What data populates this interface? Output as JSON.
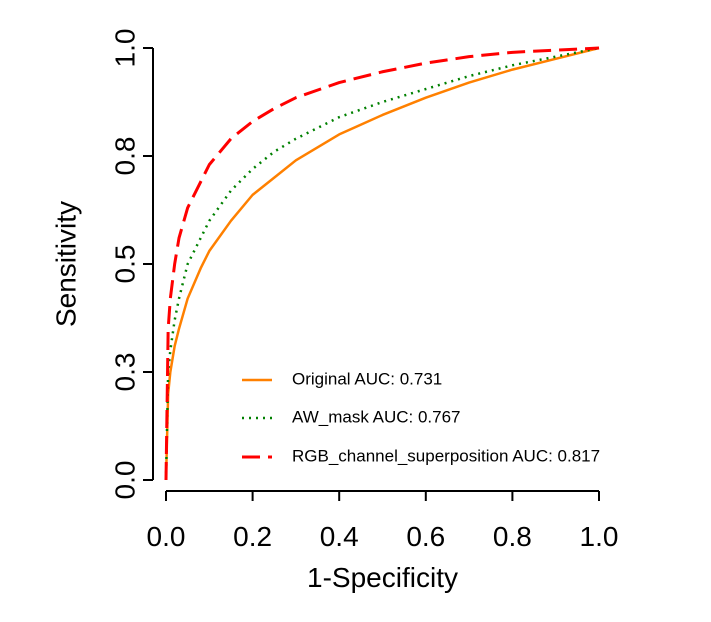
{
  "chart_data": {
    "type": "line",
    "title": "",
    "xlabel": "1-Specificity",
    "ylabel": "Sensitivity",
    "xlim": [
      0,
      1
    ],
    "ylim": [
      0,
      1
    ],
    "x_ticks": [
      "0.0",
      "0.2",
      "0.4",
      "0.6",
      "0.8",
      "1.0"
    ],
    "y_ticks": [
      "0.0",
      "0.3",
      "0.5",
      "0.8",
      "1.0"
    ],
    "y_tick_values": [
      0.0,
      0.25,
      0.5,
      0.75,
      1.0
    ],
    "legend_position": "bottom-right",
    "grid": false,
    "series": [
      {
        "name": "Original AUC: 0.731",
        "color": "#ff8000",
        "dash": "solid",
        "x": [
          0,
          0.005,
          0.01,
          0.02,
          0.03,
          0.05,
          0.08,
          0.1,
          0.15,
          0.2,
          0.25,
          0.3,
          0.4,
          0.5,
          0.6,
          0.7,
          0.8,
          0.9,
          1.0
        ],
        "y": [
          0,
          0.2,
          0.25,
          0.31,
          0.35,
          0.42,
          0.49,
          0.53,
          0.6,
          0.66,
          0.7,
          0.74,
          0.8,
          0.845,
          0.885,
          0.92,
          0.95,
          0.975,
          1.0
        ]
      },
      {
        "name": "AW_mask AUC: 0.767",
        "color": "#008000",
        "dash": "dotted",
        "x": [
          0,
          0.005,
          0.01,
          0.02,
          0.03,
          0.05,
          0.08,
          0.1,
          0.15,
          0.2,
          0.25,
          0.3,
          0.4,
          0.5,
          0.6,
          0.7,
          0.8,
          0.9,
          1.0
        ],
        "y": [
          0,
          0.25,
          0.3,
          0.37,
          0.42,
          0.5,
          0.56,
          0.6,
          0.67,
          0.72,
          0.76,
          0.79,
          0.84,
          0.875,
          0.905,
          0.935,
          0.96,
          0.98,
          1.0
        ]
      },
      {
        "name": "RGB_channel_superposition AUC: 0.817",
        "color": "#ff0000",
        "dash": "dashed",
        "x": [
          0,
          0.005,
          0.01,
          0.02,
          0.03,
          0.05,
          0.08,
          0.1,
          0.15,
          0.2,
          0.25,
          0.3,
          0.4,
          0.5,
          0.6,
          0.7,
          0.8,
          0.9,
          1.0
        ],
        "y": [
          0,
          0.35,
          0.42,
          0.5,
          0.56,
          0.63,
          0.69,
          0.73,
          0.79,
          0.83,
          0.86,
          0.885,
          0.92,
          0.945,
          0.965,
          0.98,
          0.99,
          0.995,
          1.0
        ]
      }
    ]
  }
}
